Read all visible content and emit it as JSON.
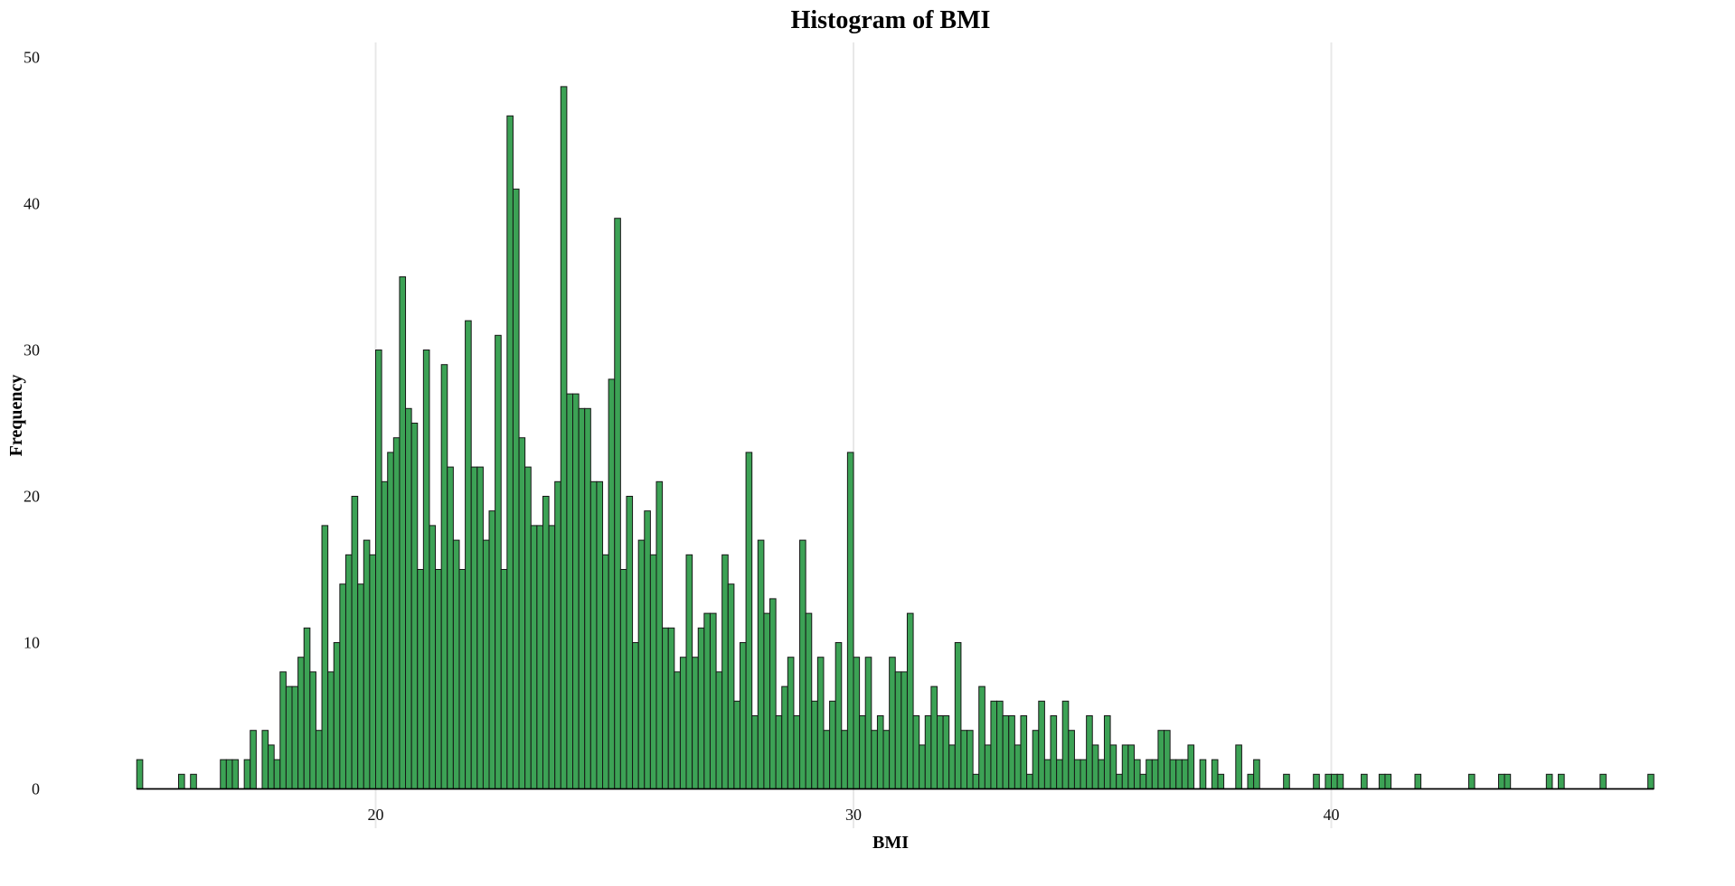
{
  "chart_data": {
    "type": "bar",
    "subtype": "histogram",
    "title": "Histogram of BMI",
    "xlabel": "BMI",
    "ylabel": "Frequency",
    "bin_start": 15.0,
    "bin_width": 0.125,
    "frequencies": [
      2,
      0,
      0,
      0,
      0,
      0,
      0,
      1,
      0,
      1,
      0,
      0,
      0,
      0,
      2,
      2,
      2,
      0,
      2,
      4,
      0,
      4,
      3,
      2,
      8,
      7,
      7,
      9,
      11,
      8,
      4,
      18,
      8,
      10,
      14,
      16,
      20,
      14,
      17,
      16,
      30,
      21,
      23,
      24,
      35,
      26,
      25,
      15,
      30,
      18,
      15,
      29,
      22,
      17,
      15,
      32,
      22,
      22,
      17,
      19,
      31,
      15,
      46,
      41,
      24,
      22,
      18,
      18,
      20,
      18,
      21,
      48,
      27,
      27,
      26,
      26,
      21,
      21,
      16,
      28,
      39,
      15,
      20,
      10,
      17,
      19,
      16,
      21,
      11,
      11,
      8,
      9,
      16,
      9,
      11,
      12,
      12,
      8,
      16,
      14,
      6,
      10,
      23,
      5,
      17,
      12,
      13,
      5,
      7,
      9,
      5,
      17,
      12,
      6,
      9,
      4,
      6,
      10,
      4,
      23,
      9,
      5,
      9,
      4,
      5,
      4,
      9,
      8,
      8,
      12,
      5,
      3,
      5,
      7,
      5,
      5,
      3,
      10,
      4,
      4,
      1,
      7,
      3,
      6,
      6,
      5,
      5,
      3,
      5,
      1,
      4,
      6,
      2,
      5,
      2,
      6,
      4,
      2,
      2,
      5,
      3,
      2,
      5,
      3,
      1,
      3,
      3,
      2,
      1,
      2,
      2,
      4,
      4,
      2,
      2,
      2,
      3,
      0,
      2,
      0,
      2,
      1,
      0,
      0,
      3,
      0,
      1,
      2,
      0,
      0,
      0,
      0,
      1,
      0,
      0,
      0,
      0,
      1,
      0,
      1,
      1,
      1,
      0,
      0,
      0,
      1,
      0,
      0,
      1,
      1,
      0,
      0,
      0,
      0,
      1,
      0,
      0,
      0,
      0,
      0,
      0,
      0,
      0,
      1,
      0,
      0,
      0,
      0,
      1,
      1,
      0,
      0,
      0,
      0,
      0,
      0,
      1,
      0,
      1,
      0,
      0,
      0,
      0,
      0,
      0,
      1,
      0,
      0,
      0,
      0,
      0,
      0,
      0,
      1
    ],
    "x_ticks": [
      20,
      30,
      40
    ],
    "y_ticks": [
      0,
      10,
      20,
      30,
      40,
      50
    ],
    "xlim": [
      14.9,
      47.6
    ],
    "ylim": [
      0,
      50
    ],
    "grid": "vertical-only",
    "legend": "none",
    "colors": {
      "bar_fill": "#3CA255",
      "bar_edge": "#161616",
      "gridline": "#e8e8e8",
      "axis_line": "#000000",
      "text": "#000000",
      "background": "#ffffff"
    }
  }
}
